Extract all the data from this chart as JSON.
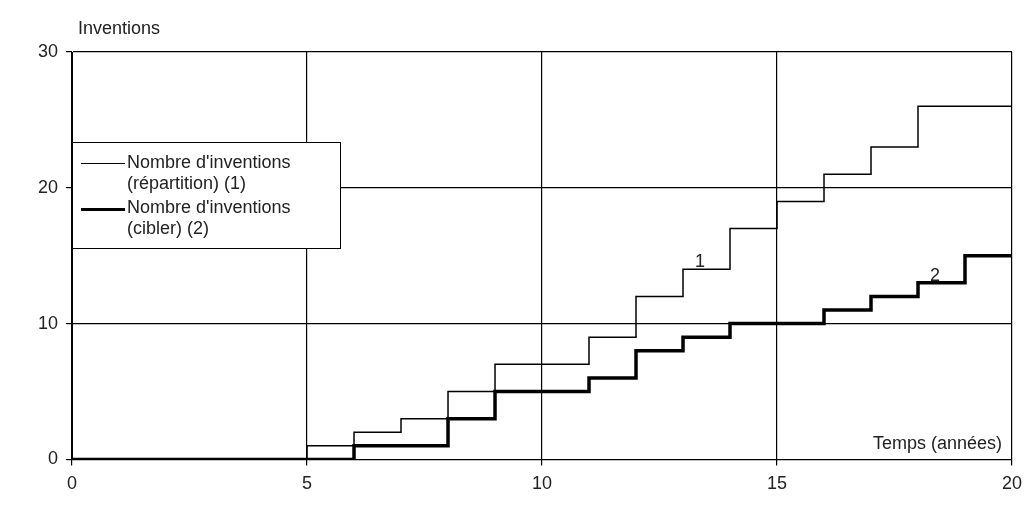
{
  "chart_data": {
    "type": "step",
    "xlabel": "Temps (années)",
    "ylabel": "Inventions",
    "xlim": [
      0,
      20
    ],
    "xticks": [
      0,
      5,
      10,
      15,
      20
    ],
    "ylim": [
      0,
      30
    ],
    "yticks": [
      0,
      10,
      20,
      30
    ],
    "grid": true,
    "legend": "left",
    "marker": "none",
    "series": [
      {
        "name": "Nombre d'inventions (répartition) (1)",
        "color": "#000000",
        "x": [
          0,
          5,
          6,
          7,
          8,
          9,
          11,
          12,
          13,
          14,
          15,
          16,
          17,
          18,
          20
        ],
        "values": [
          0,
          1,
          2,
          3,
          5,
          7,
          9,
          12,
          14,
          17,
          19,
          21,
          23,
          26,
          26
        ]
      },
      {
        "name": "Nombre d'inventions (cibler) (2)",
        "color": "#000000",
        "x": [
          0,
          6,
          8,
          9,
          11,
          12,
          13,
          14,
          16,
          17,
          18,
          19,
          20
        ],
        "values": [
          0,
          1,
          3,
          5,
          6,
          8,
          9,
          10,
          11,
          12,
          13,
          15,
          15
        ]
      }
    ],
    "annotations": [
      {
        "text": "1",
        "x": 13,
        "y": 14
      },
      {
        "text": "2",
        "x": 18,
        "y": 13
      }
    ]
  }
}
